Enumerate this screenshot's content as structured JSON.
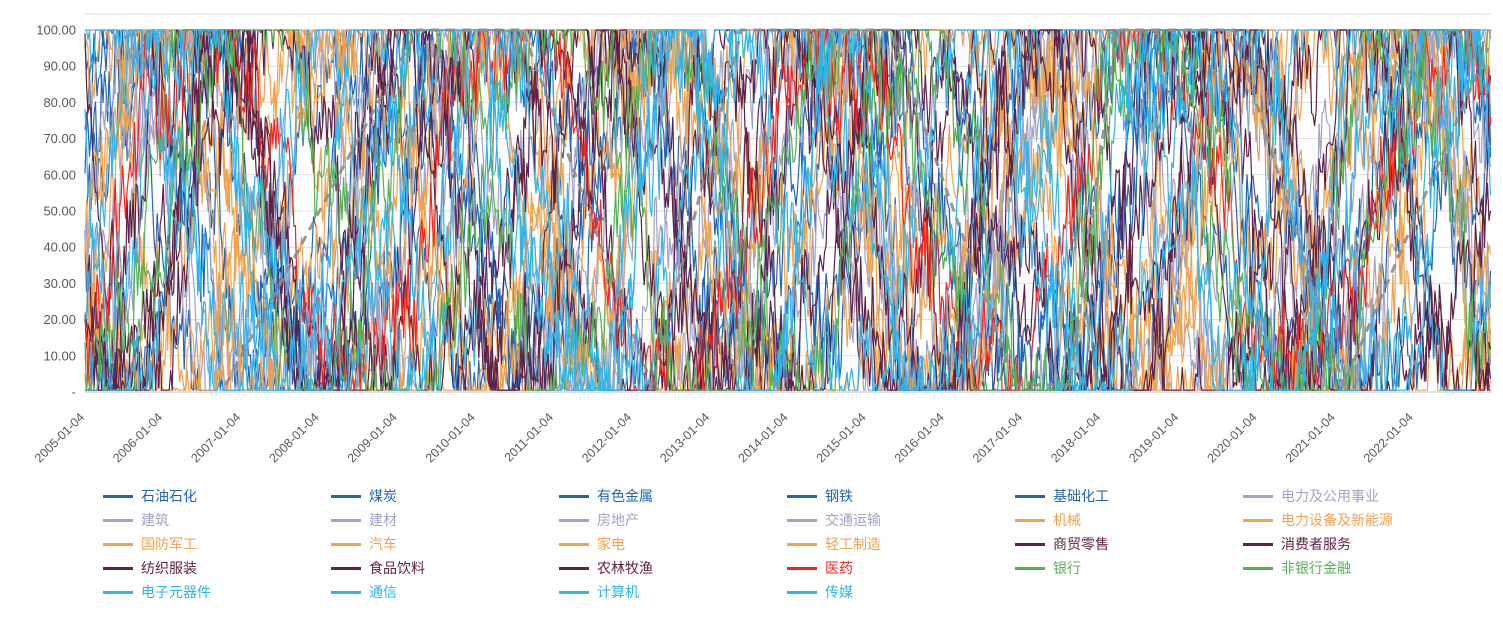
{
  "chart_data": {
    "type": "line",
    "title": "",
    "xlabel": "",
    "ylabel": "",
    "ylim": [
      0,
      100
    ],
    "grid": true,
    "y_tick_labels": [
      "100.00",
      "90.00",
      "80.00",
      "70.00",
      "60.00",
      "50.00",
      "40.00",
      "30.00",
      "20.00",
      "10.00",
      "-"
    ],
    "y_tick_values": [
      100,
      90,
      80,
      70,
      60,
      50,
      40,
      30,
      20,
      10,
      0
    ],
    "x_tick_labels": [
      "2005-01-04",
      "2006-01-04",
      "2007-01-04",
      "2008-01-04",
      "2009-01-04",
      "2010-01-04",
      "2011-01-04",
      "2012-01-04",
      "2013-01-04",
      "2014-01-04",
      "2015-01-04",
      "2016-01-04",
      "2017-01-04",
      "2018-01-04",
      "2019-01-04",
      "2020-01-04",
      "2021-01-04",
      "2022-01-04"
    ],
    "x_domain_years": [
      2005,
      2023
    ],
    "points_per_year": 52,
    "value_range_note": "percentile series oscillating between 0 and 100",
    "palette": {
      "blue": "#2265B4",
      "gray": "#A0A3C4",
      "orange": "#F0A34F",
      "maroon": "#5E2247",
      "red": "#F5241D",
      "green": "#55B054",
      "cyan": "#2FB4EC",
      "dashed_gray": "#8C8C8C",
      "gridline": "#DCDCDC",
      "axis_text": "#595959"
    },
    "series": [
      {
        "name": "石油石化",
        "color": "#2265B4",
        "seed": 1019
      },
      {
        "name": "煤炭",
        "color": "#2265B4",
        "seed": 2027
      },
      {
        "name": "有色金属",
        "color": "#2265B4",
        "seed": 3037
      },
      {
        "name": "钢铁",
        "color": "#2265B4",
        "seed": 4057
      },
      {
        "name": "基础化工",
        "color": "#2265B4",
        "seed": 5077
      },
      {
        "name": "电力及公用事业",
        "color": "#A0A3C4",
        "seed": 6089
      },
      {
        "name": "建筑",
        "color": "#A0A3C4",
        "seed": 7103
      },
      {
        "name": "建材",
        "color": "#A0A3C4",
        "seed": 8117
      },
      {
        "name": "房地产",
        "color": "#A0A3C4",
        "seed": 9127
      },
      {
        "name": "交通运输",
        "color": "#A0A3C4",
        "seed": 10139
      },
      {
        "name": "机械",
        "color": "#F0A34F",
        "seed": 11149
      },
      {
        "name": "电力设备及新能源",
        "color": "#F0A34F",
        "seed": 12161
      },
      {
        "name": "国防军工",
        "color": "#F0A34F",
        "seed": 13171
      },
      {
        "name": "汽车",
        "color": "#F0A34F",
        "seed": 14187
      },
      {
        "name": "家电",
        "color": "#F0A34F",
        "seed": 15193
      },
      {
        "name": "轻工制造",
        "color": "#F0A34F",
        "seed": 16217
      },
      {
        "name": "商贸零售",
        "color": "#5E2247",
        "seed": 17231
      },
      {
        "name": "消费者服务",
        "color": "#5E2247",
        "seed": 18253
      },
      {
        "name": "纺织服装",
        "color": "#5E2247",
        "seed": 19267
      },
      {
        "name": "食品饮料",
        "color": "#5E2247",
        "seed": 20287
      },
      {
        "name": "农林牧渔",
        "color": "#5E2247",
        "seed": 21299
      },
      {
        "name": "医药",
        "color": "#F5241D",
        "seed": 22307
      },
      {
        "name": "银行",
        "color": "#55B054",
        "seed": 23327
      },
      {
        "name": "非银行金融",
        "color": "#55B054",
        "seed": 24337
      },
      {
        "name": "电子元器件",
        "color": "#2FB4EC",
        "seed": 25349
      },
      {
        "name": "通信",
        "color": "#2FB4EC",
        "seed": 26359
      },
      {
        "name": "计算机",
        "color": "#2FB4EC",
        "seed": 27367
      },
      {
        "name": "传媒",
        "color": "#2FB4EC",
        "seed": 28387
      }
    ],
    "cycle_line": {
      "name": "cycle-indicator-dashed",
      "color": "#8C8C8C",
      "dash": [
        9,
        7
      ],
      "points_year_value": [
        [
          1.8,
          2
        ],
        [
          4.25,
          100
        ],
        [
          5.6,
          100
        ],
        [
          7.25,
          2
        ],
        [
          8.4,
          100
        ],
        [
          10.3,
          100
        ],
        [
          11.9,
          2
        ],
        [
          12.6,
          2
        ],
        [
          13.2,
          100
        ],
        [
          14.7,
          100
        ],
        [
          16.1,
          2
        ],
        [
          17.95,
          95
        ]
      ]
    },
    "legend_columns": 6
  }
}
